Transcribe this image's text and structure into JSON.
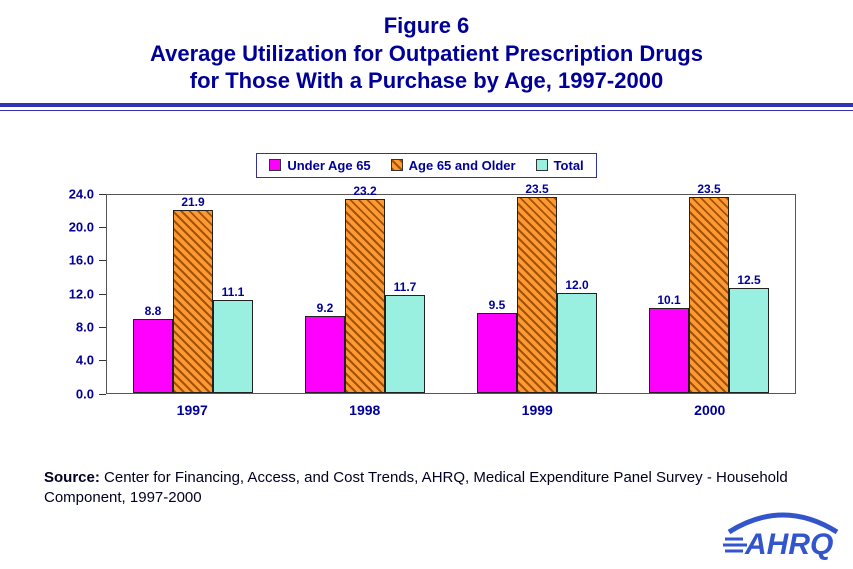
{
  "title": {
    "line1": "Figure 6",
    "line2": "Average Utilization for Outpatient Prescription Drugs",
    "line3": "for Those With a Purchase by Age, 1997-2000"
  },
  "chart_data": {
    "type": "bar",
    "categories": [
      "1997",
      "1998",
      "1999",
      "2000"
    ],
    "series": [
      {
        "name": "Under Age 65",
        "color": "#FF00FF",
        "hatch": false,
        "values": [
          8.8,
          9.2,
          9.5,
          10.1
        ]
      },
      {
        "name": "Age 65 and Older",
        "color": "#FF9933",
        "hatch": true,
        "values": [
          21.9,
          23.2,
          23.5,
          23.5
        ]
      },
      {
        "name": "Total",
        "color": "#99F0E0",
        "hatch": false,
        "values": [
          11.1,
          11.7,
          12.0,
          12.5
        ]
      }
    ],
    "ylim": [
      0,
      24
    ],
    "yticks": [
      "24.0",
      "20.0",
      "16.0",
      "12.0",
      "8.0",
      "4.0",
      "0.0"
    ],
    "grid": false,
    "legend_position": "top-center",
    "accent_color": "#000099"
  },
  "source": {
    "label": "Source:",
    "text": " Center for Financing, Access, and Cost Trends, AHRQ, Medical Expenditure Panel Survey - Household Component, 1997-2000"
  },
  "logo": {
    "text": "AHRQ"
  }
}
